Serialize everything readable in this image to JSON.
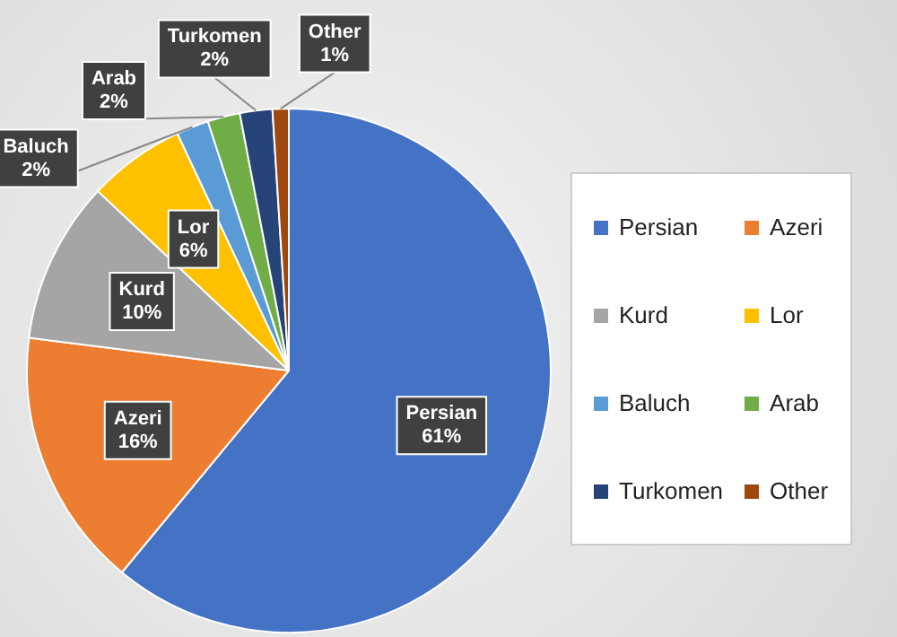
{
  "chart_data": {
    "type": "pie",
    "categories": [
      "Persian",
      "Azeri",
      "Kurd",
      "Lor",
      "Baluch",
      "Arab",
      "Turkomen",
      "Other"
    ],
    "values": [
      61,
      16,
      10,
      6,
      2,
      2,
      2,
      1
    ],
    "value_labels": [
      "61%",
      "16%",
      "10%",
      "6%",
      "2%",
      "2%",
      "2%",
      "1%"
    ],
    "colors": [
      "#4472c4",
      "#ed7d31",
      "#a5a5a5",
      "#ffc000",
      "#5b9bd5",
      "#70ad47",
      "#264478",
      "#9e480e"
    ],
    "legend": "right"
  }
}
